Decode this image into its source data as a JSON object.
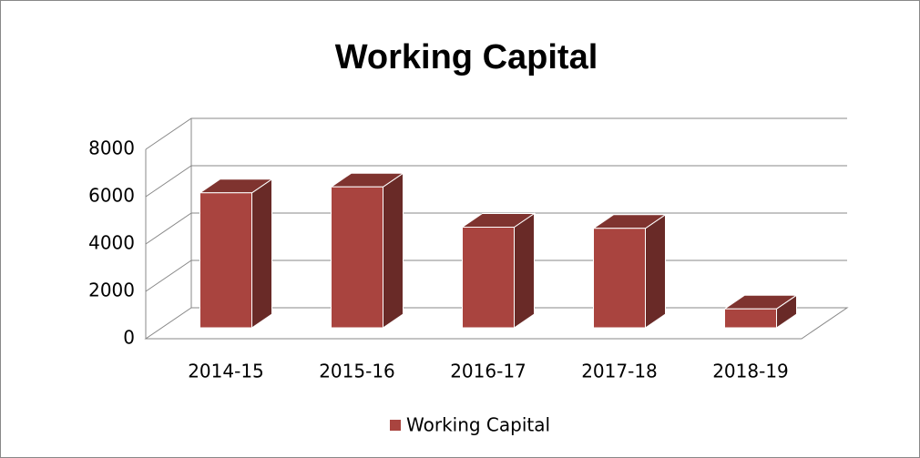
{
  "chart_data": {
    "type": "bar3d",
    "title": "Working Capital",
    "categories": [
      "2014-15",
      "2015-16",
      "2016-17",
      "2017-18",
      "2018-19"
    ],
    "series": [
      {
        "name": "Working Capital",
        "color": "#a9443f",
        "values": [
          5700,
          5950,
          4250,
          4200,
          800
        ]
      }
    ],
    "ylim": [
      0,
      8000
    ],
    "yticks": [
      0,
      2000,
      4000,
      6000,
      8000
    ],
    "grid": true,
    "legend": "bottom"
  }
}
